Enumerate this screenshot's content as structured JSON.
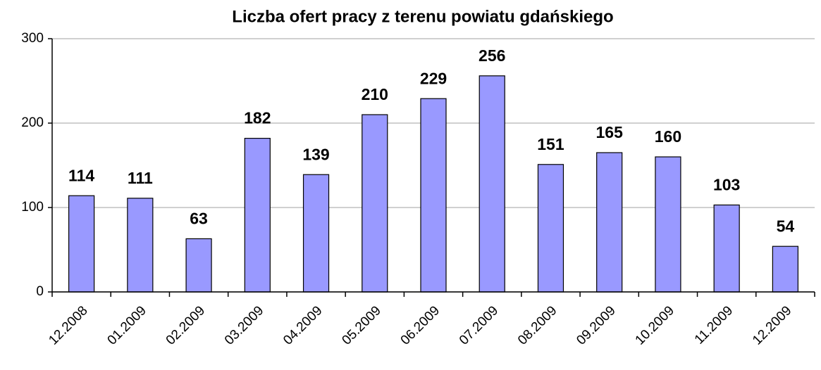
{
  "chart_data": {
    "type": "bar",
    "title": "Liczba ofert pracy z terenu powiatu gdańskiego",
    "categories": [
      "12.2008",
      "01.2009",
      "02.2009",
      "03.2009",
      "04.2009",
      "05.2009",
      "06.2009",
      "07.2009",
      "08.2009",
      "09.2009",
      "10.2009",
      "11.2009",
      "12.2009"
    ],
    "values": [
      114,
      111,
      63,
      182,
      139,
      210,
      229,
      256,
      151,
      165,
      160,
      103,
      54
    ],
    "color": "#9999ff",
    "ylim": [
      0,
      300
    ],
    "yticks": [
      0,
      100,
      200,
      300
    ],
    "grid": true
  }
}
